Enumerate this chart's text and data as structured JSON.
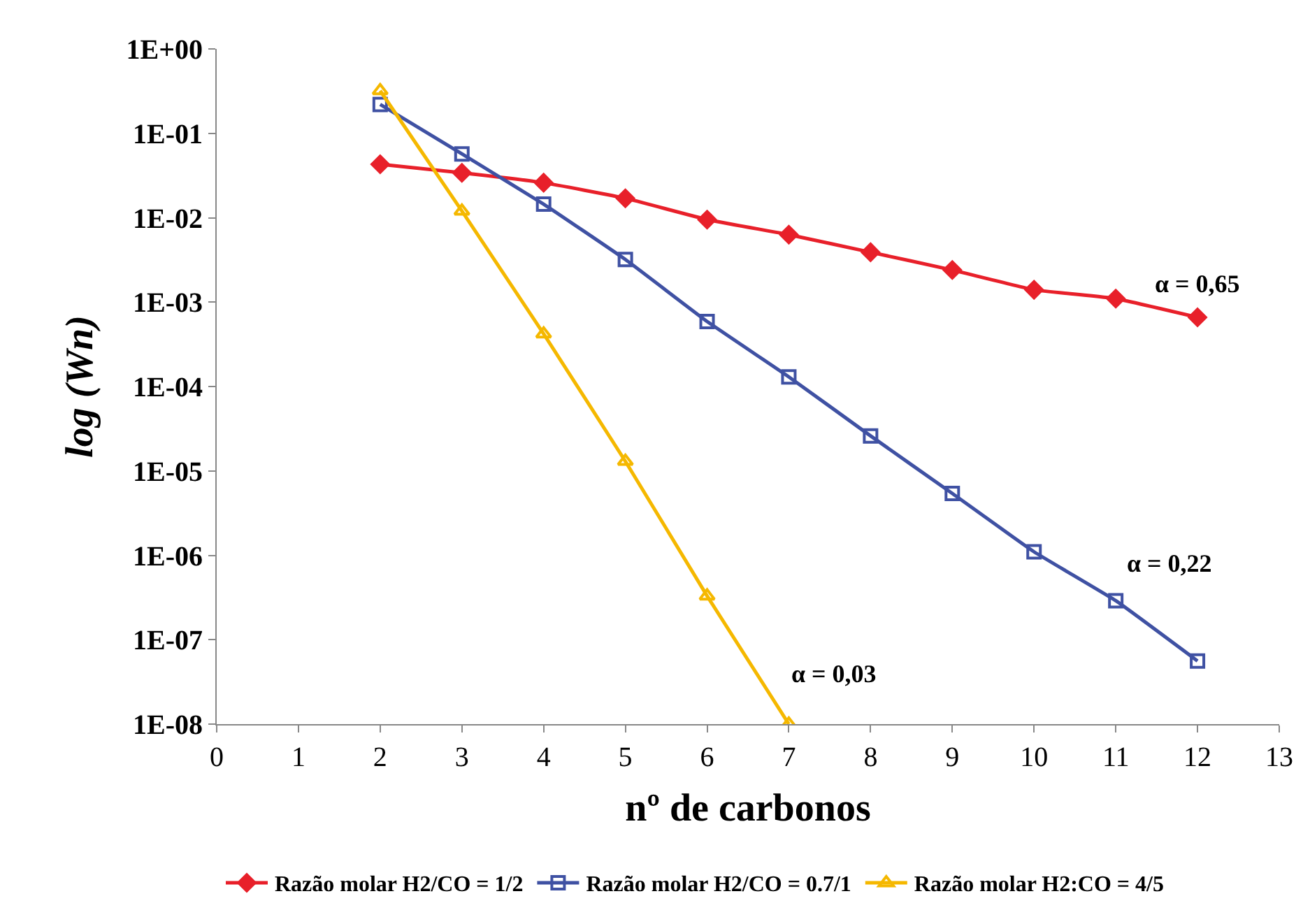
{
  "chart_data": {
    "type": "line",
    "xlabel": "nº de carbonos",
    "ylabel": "log (Wn)",
    "x": [
      2,
      3,
      4,
      5,
      6,
      7,
      8,
      9,
      10,
      11,
      12
    ],
    "series": [
      {
        "name": "Razão molar H2/CO = 1/2",
        "color": "#e8202a",
        "marker": "diamond",
        "values": [
          0.043,
          0.034,
          0.026,
          0.017,
          0.0095,
          0.0063,
          0.0039,
          0.0024,
          0.0014,
          0.0011,
          0.00066
        ]
      },
      {
        "name": "Razão molar H2/CO = 0.7/1",
        "color": "#3f51a3",
        "marker": "square",
        "values": [
          0.22,
          0.057,
          0.0145,
          0.0032,
          0.00059,
          0.00013,
          2.6e-05,
          5.4e-06,
          1.1e-06,
          2.9e-07,
          5.6e-08
        ]
      },
      {
        "name": "Razão molar H2:CO = 4/5",
        "color": "#f5b800",
        "marker": "triangle",
        "x": [
          2,
          3,
          4,
          5,
          6,
          7
        ],
        "values": [
          0.32,
          0.012,
          0.00042,
          1.3e-05,
          3.3e-07,
          1e-08
        ]
      }
    ],
    "annotations": [
      "α = 0,65",
      "α = 0,22",
      "α = 0,03"
    ],
    "log": true,
    "xlim": [
      0,
      13
    ],
    "xticks": [
      0,
      1,
      2,
      3,
      4,
      5,
      6,
      7,
      8,
      9,
      10,
      11,
      12,
      13
    ],
    "ylim": [
      1e-08,
      1
    ],
    "yticks": [
      {
        "value": 1,
        "label": "1E+00"
      },
      {
        "value": 0.1,
        "label": "1E-01"
      },
      {
        "value": 0.01,
        "label": "1E-02"
      },
      {
        "value": 0.001,
        "label": "1E-03"
      },
      {
        "value": 0.0001,
        "label": "1E-04"
      },
      {
        "value": 1e-05,
        "label": "1E-05"
      },
      {
        "value": 1e-06,
        "label": "1E-06"
      },
      {
        "value": 1e-07,
        "label": "1E-07"
      },
      {
        "value": 1e-08,
        "label": "1E-08"
      }
    ],
    "legend": "bottom",
    "line_style": "solid"
  }
}
